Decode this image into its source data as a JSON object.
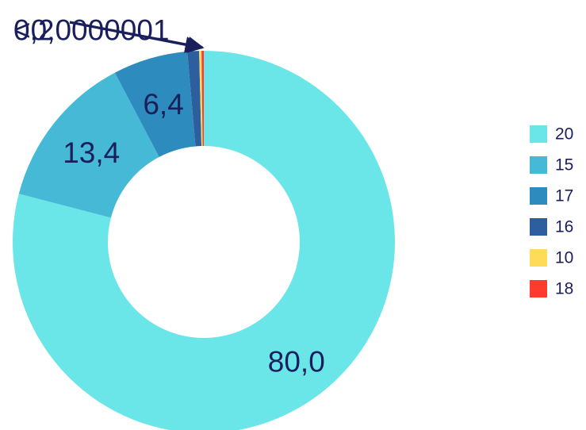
{
  "chart_data": {
    "type": "pie",
    "variant": "donut",
    "title": "",
    "slices": [
      {
        "legend": "20",
        "value": 80.0,
        "label": "80,0",
        "color": "#6ae5e8"
      },
      {
        "legend": "15",
        "value": 13.4,
        "label": "13,4",
        "color": "#45b9d6"
      },
      {
        "legend": "17",
        "value": 6.4,
        "label": "6,4",
        "color": "#2e8bbd"
      },
      {
        "legend": "16",
        "value": 1.0,
        "label": "",
        "color": "#2d5e9e"
      },
      {
        "legend": "10",
        "value": 0.2,
        "label": "0,2",
        "color": "#fedc5a"
      },
      {
        "legend": "18",
        "value": 1e-07,
        "label": "<0,0000001",
        "color": "#ff3b30"
      }
    ],
    "legend_position": "right",
    "grid": false
  }
}
